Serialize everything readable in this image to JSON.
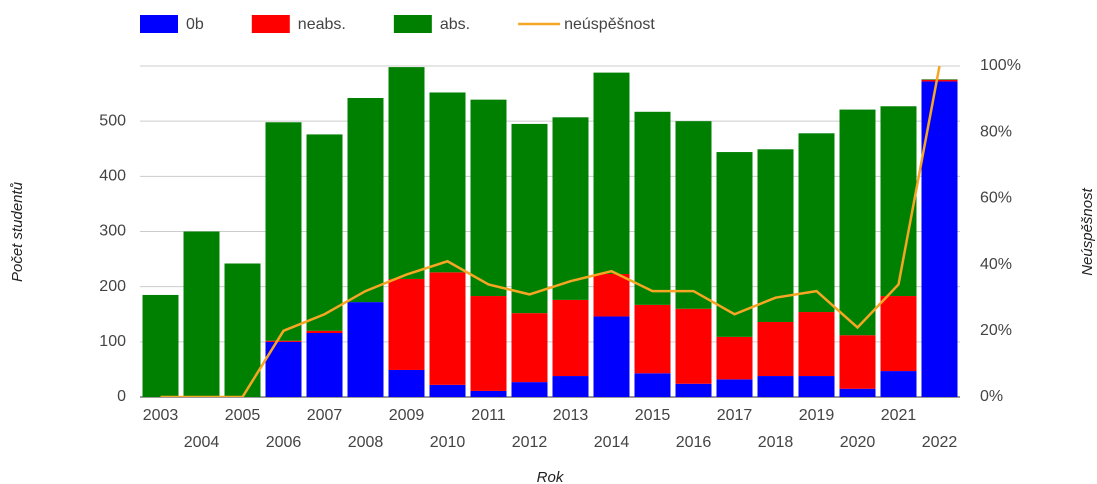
{
  "chart_data": {
    "type": "bar",
    "stacked": true,
    "x_label": "Rok",
    "y_label": "Počet studentů",
    "y2_label": "Neúspěšnost",
    "categories": [
      "2003",
      "2004",
      "2005",
      "2006",
      "2007",
      "2008",
      "2009",
      "2010",
      "2011",
      "2012",
      "2013",
      "2014",
      "2015",
      "2016",
      "2017",
      "2018",
      "2019",
      "2020",
      "2021",
      "2022"
    ],
    "series": [
      {
        "name": "0b",
        "color": "#0000ff",
        "values": [
          0,
          0,
          0,
          100,
          116,
          172,
          49,
          22,
          11,
          27,
          38,
          146,
          43,
          24,
          32,
          38,
          38,
          15,
          47,
          572
        ]
      },
      {
        "name": "neabs.",
        "color": "#ff0000",
        "values": [
          0,
          0,
          0,
          2,
          4,
          0,
          165,
          204,
          172,
          125,
          138,
          77,
          124,
          136,
          77,
          98,
          116,
          97,
          136,
          3
        ]
      },
      {
        "name": "abs.",
        "color": "#008000",
        "values": [
          185,
          300,
          242,
          396,
          356,
          370,
          384,
          326,
          356,
          343,
          331,
          365,
          350,
          340,
          335,
          313,
          324,
          409,
          344,
          1
        ]
      },
      {
        "name": "neúspěšnost",
        "color": "#f5a623",
        "type": "line",
        "axis": "y2",
        "values": [
          0,
          0,
          0,
          20,
          25,
          32,
          37,
          41,
          34,
          31,
          35,
          38,
          32,
          32,
          25,
          30,
          32,
          21,
          34,
          100
        ]
      }
    ],
    "ylim": [
      0,
      600
    ],
    "yticks": [
      0,
      100,
      200,
      300,
      400,
      500
    ],
    "y2lim": [
      0,
      100
    ],
    "y2ticks": [
      {
        "value": 0,
        "label": "0%"
      },
      {
        "value": 20,
        "label": "20%"
      },
      {
        "value": 40,
        "label": "40%"
      },
      {
        "value": 60,
        "label": "60%"
      },
      {
        "value": 80,
        "label": "80%"
      },
      {
        "value": 100,
        "label": "100%"
      }
    ],
    "grid": true,
    "legend": "top"
  }
}
